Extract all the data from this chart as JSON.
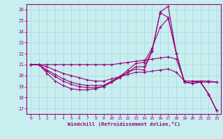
{
  "title": "",
  "xlabel": "Windchill (Refroidissement éolien,°C)",
  "ylabel": "",
  "bg_color": "#c8eef0",
  "line_color": "#990077",
  "grid_color": "#b0dde0",
  "xlim": [
    -0.5,
    23.5
  ],
  "ylim": [
    16.5,
    26.5
  ],
  "xticks": [
    0,
    1,
    2,
    3,
    4,
    5,
    6,
    7,
    8,
    9,
    10,
    11,
    12,
    13,
    14,
    15,
    16,
    17,
    18,
    19,
    20,
    21,
    22,
    23
  ],
  "yticks": [
    17,
    18,
    19,
    20,
    21,
    22,
    23,
    24,
    25,
    26
  ],
  "lines": [
    {
      "x": [
        0,
        1,
        2,
        3,
        4,
        5,
        6,
        7,
        8,
        9,
        10,
        11,
        12,
        13,
        14,
        15,
        16,
        17,
        18,
        19,
        20,
        21,
        22,
        23
      ],
      "y": [
        21.0,
        21.0,
        21.0,
        21.0,
        21.0,
        21.0,
        21.0,
        21.0,
        21.0,
        21.0,
        21.0,
        21.1,
        21.2,
        21.3,
        21.4,
        21.5,
        21.6,
        21.7,
        21.5,
        19.5,
        19.5,
        19.4,
        19.4,
        19.4
      ]
    },
    {
      "x": [
        0,
        1,
        2,
        3,
        4,
        5,
        6,
        7,
        8,
        9,
        10,
        11,
        12,
        13,
        14,
        15,
        16,
        17,
        18,
        19,
        20,
        21,
        22,
        23
      ],
      "y": [
        21.0,
        21.0,
        20.8,
        20.5,
        20.2,
        20.0,
        19.8,
        19.6,
        19.5,
        19.5,
        19.7,
        19.9,
        20.1,
        20.3,
        20.3,
        20.4,
        20.5,
        20.6,
        20.3,
        19.5,
        19.5,
        19.5,
        19.5,
        19.4
      ]
    },
    {
      "x": [
        0,
        1,
        2,
        3,
        4,
        5,
        6,
        7,
        8,
        9,
        10,
        11,
        12,
        13,
        14,
        15,
        16,
        17,
        18,
        19,
        20,
        21,
        22,
        23
      ],
      "y": [
        21.0,
        21.0,
        20.5,
        20.1,
        19.7,
        19.4,
        19.2,
        19.1,
        19.1,
        19.1,
        19.5,
        19.9,
        20.3,
        20.6,
        20.5,
        22.2,
        25.8,
        26.3,
        22.0,
        19.4,
        19.3,
        19.4,
        18.3,
        16.8
      ]
    },
    {
      "x": [
        0,
        1,
        2,
        3,
        4,
        5,
        6,
        7,
        8,
        9,
        10,
        11,
        12,
        13,
        14,
        15,
        16,
        17,
        18,
        19,
        20,
        21,
        22,
        23
      ],
      "y": [
        21.0,
        21.0,
        20.4,
        19.9,
        19.5,
        19.2,
        19.0,
        18.9,
        18.9,
        19.0,
        19.4,
        19.8,
        20.3,
        20.8,
        20.8,
        22.3,
        25.7,
        25.3,
        22.0,
        19.4,
        19.3,
        19.4,
        18.3,
        16.8
      ]
    },
    {
      "x": [
        0,
        1,
        2,
        3,
        4,
        5,
        6,
        7,
        8,
        9,
        10,
        11,
        12,
        13,
        14,
        15,
        16,
        17,
        18,
        19,
        20,
        21,
        22,
        23
      ],
      "y": [
        21.0,
        21.0,
        20.2,
        19.5,
        19.1,
        18.8,
        18.7,
        18.7,
        18.8,
        19.0,
        19.4,
        19.9,
        20.5,
        21.1,
        21.2,
        22.5,
        24.4,
        25.2,
        22.0,
        19.4,
        19.3,
        19.4,
        18.3,
        16.8
      ]
    }
  ]
}
